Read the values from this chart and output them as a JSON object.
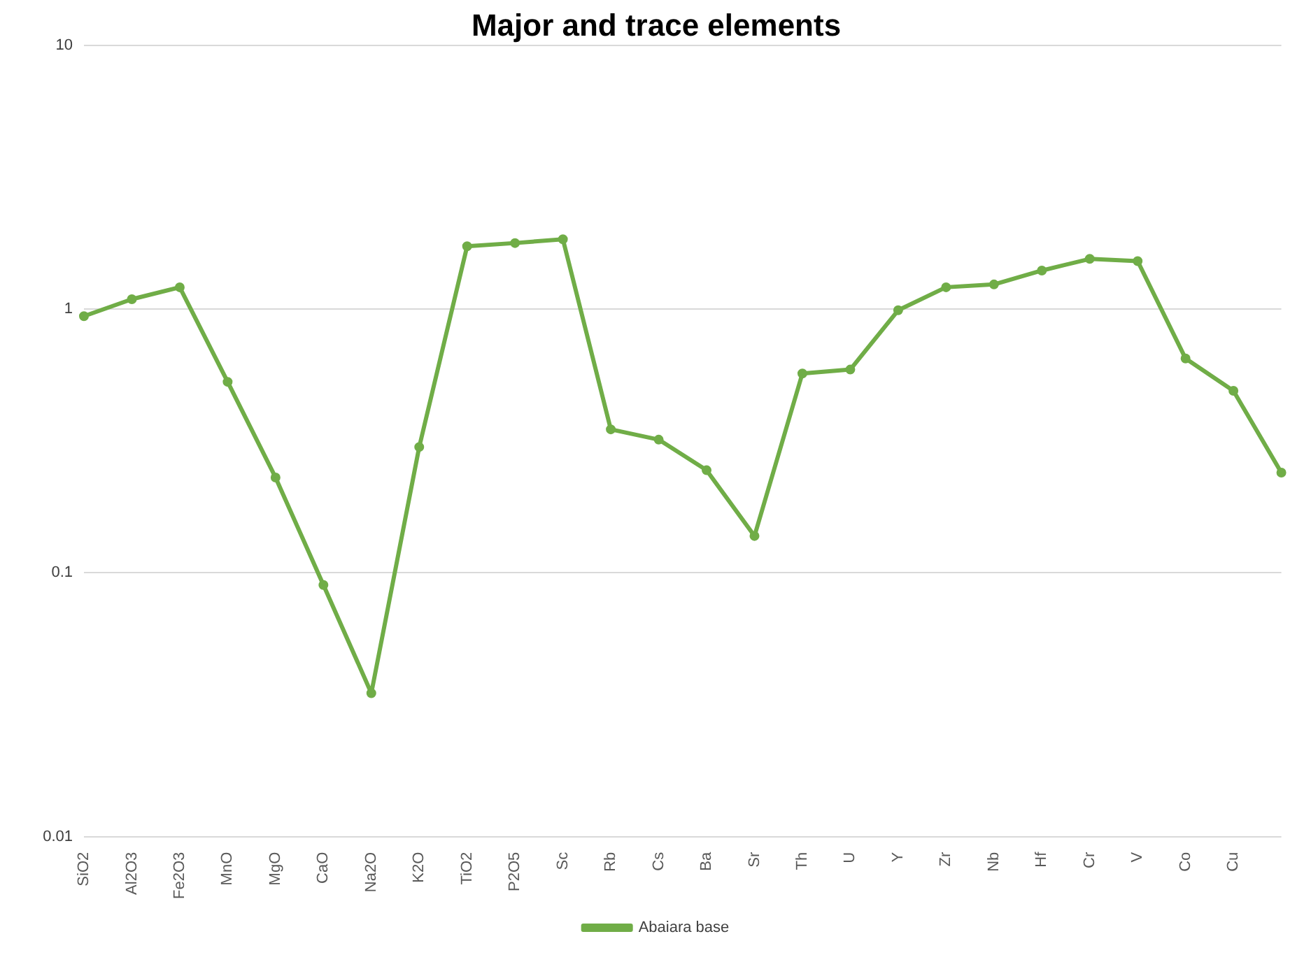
{
  "chart_data": {
    "type": "line",
    "title": "Major and trace elements",
    "categories": [
      "SiO2",
      "Al2O3",
      "Fe2O3",
      "MnO",
      "MgO",
      "CaO",
      "Na2O",
      "K2O",
      "TiO2",
      "P2O5",
      "Sc",
      "Rb",
      "Cs",
      "Ba",
      "Sr",
      "Th",
      "U",
      "Y",
      "Zr",
      "Nb",
      "Hf",
      "Cr",
      "V",
      "Co",
      "Cu",
      null
    ],
    "series": [
      {
        "name": "Abaiara base",
        "color": "#70ad47",
        "values": [
          0.94,
          1.09,
          1.21,
          0.53,
          0.23,
          0.09,
          0.035,
          0.3,
          1.73,
          1.78,
          1.84,
          0.35,
          0.32,
          0.245,
          0.138,
          0.57,
          0.59,
          0.99,
          1.21,
          1.24,
          1.4,
          1.55,
          1.52,
          0.65,
          0.49,
          0.24
        ]
      }
    ],
    "log": "y",
    "ylim": [
      0.01,
      10
    ],
    "yticks": [
      0.01,
      0.1,
      1,
      10
    ],
    "grid": "y",
    "legend": "bottom",
    "marker": "circle",
    "line_style": "solid"
  }
}
